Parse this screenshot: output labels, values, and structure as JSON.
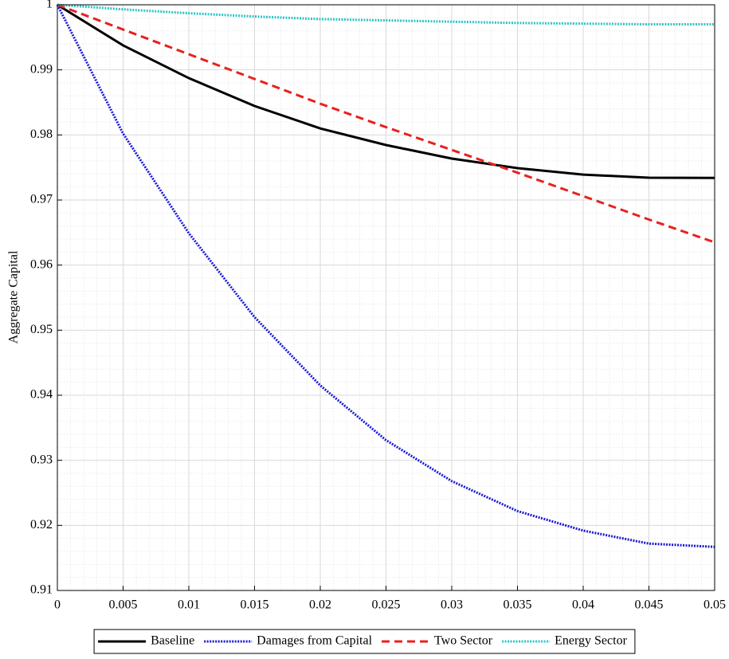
{
  "chart_data": {
    "type": "line",
    "ylabel": "Aggregate Capital",
    "x": [
      0,
      0.005,
      0.01,
      0.015,
      0.02,
      0.025,
      0.03,
      0.035,
      0.04,
      0.045,
      0.05
    ],
    "series": [
      {
        "name": "Baseline",
        "color": "#000000",
        "style": "solid",
        "values": [
          1,
          0.99376,
          0.98873,
          0.98445,
          0.981,
          0.97845,
          0.97637,
          0.9749,
          0.9739,
          0.97343,
          0.9734
        ]
      },
      {
        "name": "Damages from Capital",
        "color": "#1a1ad6",
        "style": "dotted",
        "values": [
          1,
          0.9802,
          0.9649,
          0.952,
          0.9415,
          0.9331,
          0.9268,
          0.9222,
          0.9192,
          0.9172,
          0.9167
        ]
      },
      {
        "name": "Two Sector",
        "color": "#e8211f",
        "style": "dashed",
        "values": [
          1,
          0.9962,
          0.9924,
          0.9886,
          0.9848,
          0.9812,
          0.9777,
          0.9742,
          0.9706,
          0.967,
          0.9635
        ]
      },
      {
        "name": "Energy Sector",
        "color": "#2ec4c4",
        "style": "dotted",
        "values": [
          1,
          0.9993,
          0.9987,
          0.9982,
          0.9978,
          0.9976,
          0.9974,
          0.9972,
          0.9971,
          0.997,
          0.997
        ]
      }
    ],
    "xlim": [
      0,
      0.05
    ],
    "ylim": [
      0.91,
      1
    ],
    "xticks": [
      0,
      0.005,
      0.01,
      0.015,
      0.02,
      0.025,
      0.03,
      0.035,
      0.04,
      0.045,
      0.05
    ],
    "yticks": [
      0.91,
      0.92,
      0.93,
      0.94,
      0.95,
      0.96,
      0.97,
      0.98,
      0.99,
      1
    ],
    "grid": true,
    "minor_grid": true,
    "legend": "bottom"
  }
}
